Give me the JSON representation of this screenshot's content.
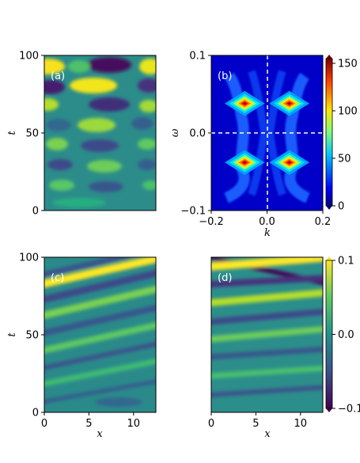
{
  "chart_data": [
    {
      "type": "heatmap",
      "panel_label": "(a)",
      "xlabel": "",
      "ylabel": "t",
      "xlim": [
        0,
        12.5
      ],
      "ylim": [
        0,
        100
      ],
      "yticks": [
        "0",
        "50",
        "100"
      ],
      "xticks_visible": false,
      "colormap": "viridis",
      "value_range": [
        -0.1,
        0.1
      ]
    },
    {
      "type": "heatmap",
      "panel_label": "(b)",
      "xlabel": "k",
      "ylabel": "ω",
      "xlim": [
        -0.2,
        0.2
      ],
      "ylim": [
        -0.1,
        0.1
      ],
      "xticks": [
        "−0.2",
        "0.0",
        "0.2"
      ],
      "yticks": [
        "−0.1",
        "0.0",
        "0.1"
      ],
      "colormap": "jet",
      "peaks": [
        {
          "k": -0.08,
          "omega": 0.038,
          "value": 150
        },
        {
          "k": 0.08,
          "omega": 0.038,
          "value": 150
        },
        {
          "k": -0.08,
          "omega": -0.038,
          "value": 150
        },
        {
          "k": 0.08,
          "omega": -0.038,
          "value": 150
        }
      ],
      "dashed_lines": {
        "k": 0.0,
        "omega": 0.0
      },
      "colorbar": {
        "ticks": [
          "0",
          "50",
          "100",
          "150"
        ],
        "range": [
          0,
          155
        ]
      }
    },
    {
      "type": "heatmap",
      "panel_label": "(c)",
      "xlabel": "x",
      "ylabel": "t",
      "xlim": [
        0,
        12.5
      ],
      "ylim": [
        0,
        100
      ],
      "xticks": [
        "0",
        "5",
        "10"
      ],
      "yticks": [
        "0",
        "50",
        "100"
      ],
      "colormap": "viridis",
      "value_range": [
        -0.1,
        0.1
      ]
    },
    {
      "type": "heatmap",
      "panel_label": "(d)",
      "xlabel": "x",
      "ylabel": "",
      "xlim": [
        0,
        12.5
      ],
      "ylim": [
        0,
        100
      ],
      "xticks": [
        "0",
        "5",
        "10"
      ],
      "yticks_visible": false,
      "colormap": "viridis",
      "value_range": [
        -0.1,
        0.1
      ],
      "colorbar": {
        "ticks": [
          "0.1",
          "0.0",
          "−0.1"
        ],
        "range": [
          -0.1,
          0.1
        ]
      }
    }
  ]
}
